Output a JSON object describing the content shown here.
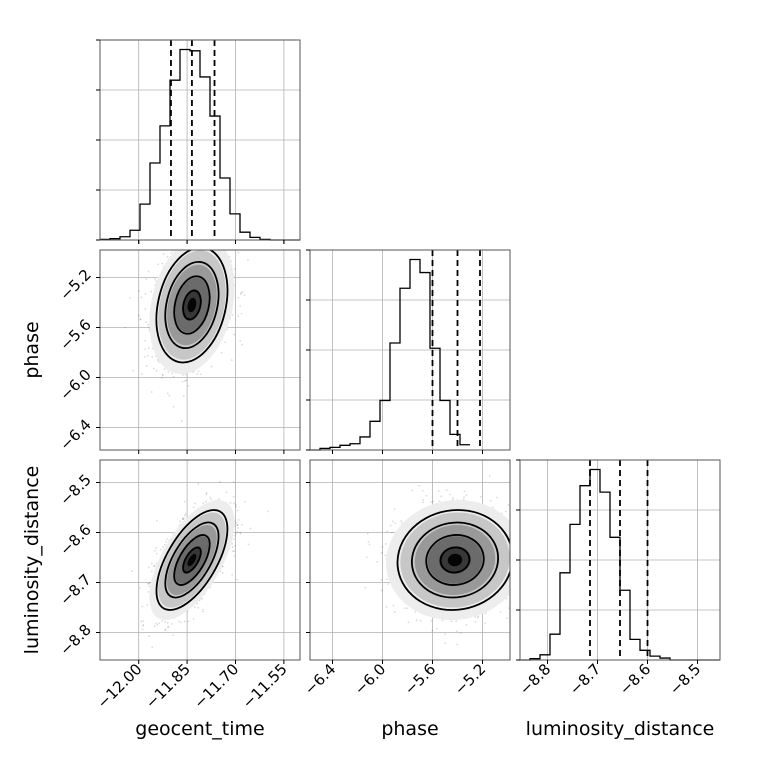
{
  "chart_data": {
    "type": "corner",
    "parameters": [
      "geocent_time",
      "phase",
      "luminosity_distance"
    ],
    "axis_labels": {
      "x": [
        "geocent_time",
        "phase",
        "luminosity_distance"
      ],
      "y": [
        "phase",
        "luminosity_distance"
      ]
    },
    "ranges": {
      "geocent_time": [
        -12.12,
        -11.5
      ],
      "phase": [
        -6.58,
        -4.98
      ],
      "luminosity_distance": [
        -8.855,
        -8.455
      ]
    },
    "ticks": {
      "geocent_time": {
        "values": [
          -12.0,
          -11.85,
          -11.7,
          -11.55
        ],
        "labels": [
          "−12.00",
          "−11.85",
          "−11.70",
          "−11.55"
        ]
      },
      "phase": {
        "values": [
          -6.4,
          -6.0,
          -5.6,
          -5.2
        ],
        "labels": [
          "−6.4",
          "−6.0",
          "−5.6",
          "−5.2"
        ]
      },
      "luminosity_distance": {
        "values": [
          -8.8,
          -8.7,
          -8.6,
          -8.5
        ],
        "labels": [
          "−8.8",
          "−8.7",
          "−8.6",
          "−8.5"
        ]
      }
    },
    "histograms": [
      {
        "parameter": "geocent_time",
        "bin_start": -12.12,
        "bin_width": 0.031,
        "counts": [
          1,
          2,
          5,
          15,
          55,
          118,
          175,
          245,
          292,
          290,
          250,
          190,
          95,
          40,
          12,
          4,
          1,
          0,
          0,
          0
        ],
        "quantiles": [
          -11.9,
          -11.835,
          -11.765
        ]
      },
      {
        "parameter": "phase",
        "bin_start": -6.58,
        "bin_width": 0.08,
        "counts": [
          0,
          3,
          5,
          9,
          12,
          25,
          55,
          95,
          205,
          310,
          365,
          340,
          195,
          95,
          30,
          10
        ],
        "quantiles": [
          -5.6,
          -5.4,
          -5.22
        ]
      },
      {
        "parameter": "luminosity_distance",
        "bin_start": -8.855,
        "bin_width": 0.02,
        "counts": [
          0,
          2,
          8,
          40,
          135,
          210,
          270,
          295,
          260,
          190,
          108,
          32,
          15,
          6,
          3,
          0,
          0,
          0,
          0,
          0
        ],
        "quantiles": [
          -8.715,
          -8.655,
          -8.6
        ]
      }
    ],
    "pairs": [
      {
        "x": "geocent_time",
        "y": "phase",
        "center": [
          -11.835,
          -5.42
        ],
        "sigma": [
          0.055,
          0.23
        ],
        "rho": 0.25
      },
      {
        "x": "geocent_time",
        "y": "luminosity_distance",
        "center": [
          -11.835,
          -8.655
        ],
        "sigma": [
          0.055,
          0.05
        ],
        "rho": 0.62
      },
      {
        "x": "phase",
        "y": "luminosity_distance",
        "center": [
          -5.42,
          -8.655
        ],
        "sigma": [
          0.23,
          0.05
        ],
        "rho": 0.05
      }
    ],
    "grid": true
  }
}
